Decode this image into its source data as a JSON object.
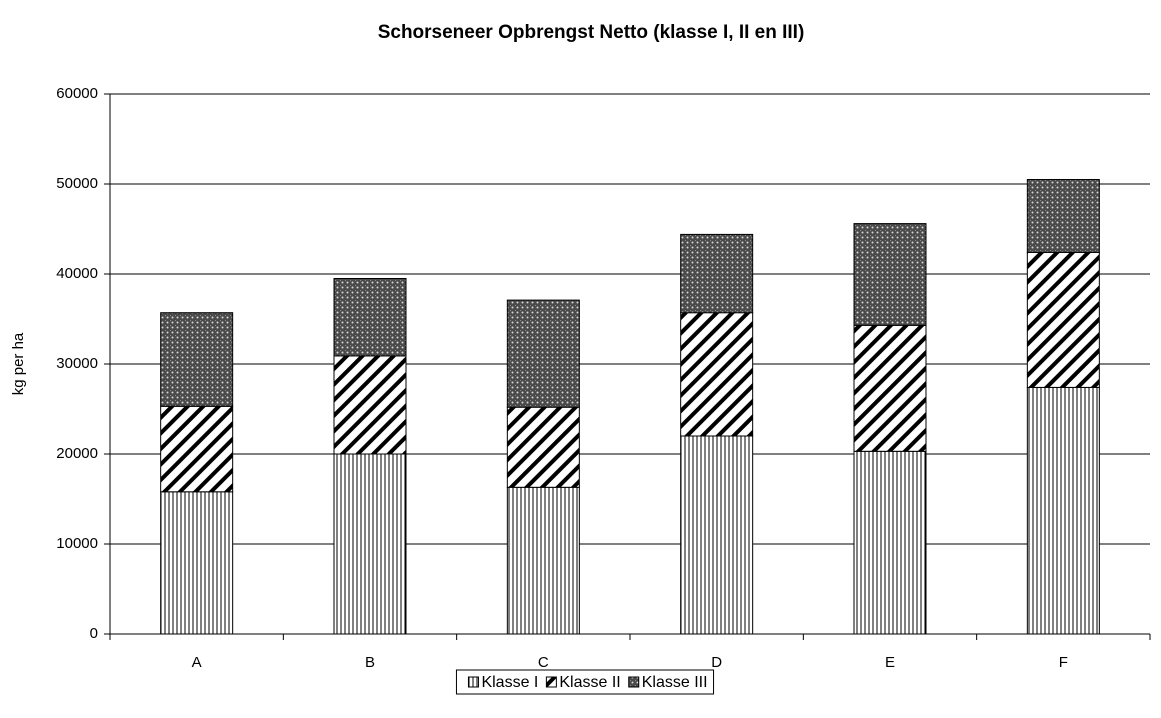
{
  "chart_data": {
    "type": "stacked_bar",
    "title": "Schorseneer Opbrengst Netto (klasse I, II en III)",
    "y_label": "kg per ha",
    "categories": [
      "A",
      "B",
      "C",
      "D",
      "E",
      "F"
    ],
    "series": [
      {
        "name": "Klasse I",
        "color": "#000000",
        "pattern": "vertical",
        "values": [
          15800,
          20000,
          16300,
          22000,
          20300,
          27400
        ]
      },
      {
        "name": "Klasse II",
        "color": "#000000",
        "pattern": "diagonal",
        "values": [
          9500,
          10900,
          8900,
          13700,
          14000,
          15000
        ]
      },
      {
        "name": "Klasse III",
        "color": "#000000",
        "pattern": "crosshatch",
        "values": [
          10400,
          8600,
          11900,
          8700,
          11300,
          8100
        ]
      }
    ],
    "ylim": [
      0,
      60000
    ],
    "yticks": [
      0,
      10000,
      20000,
      30000,
      40000,
      50000,
      60000
    ],
    "grid": true,
    "legend": "bottom"
  }
}
